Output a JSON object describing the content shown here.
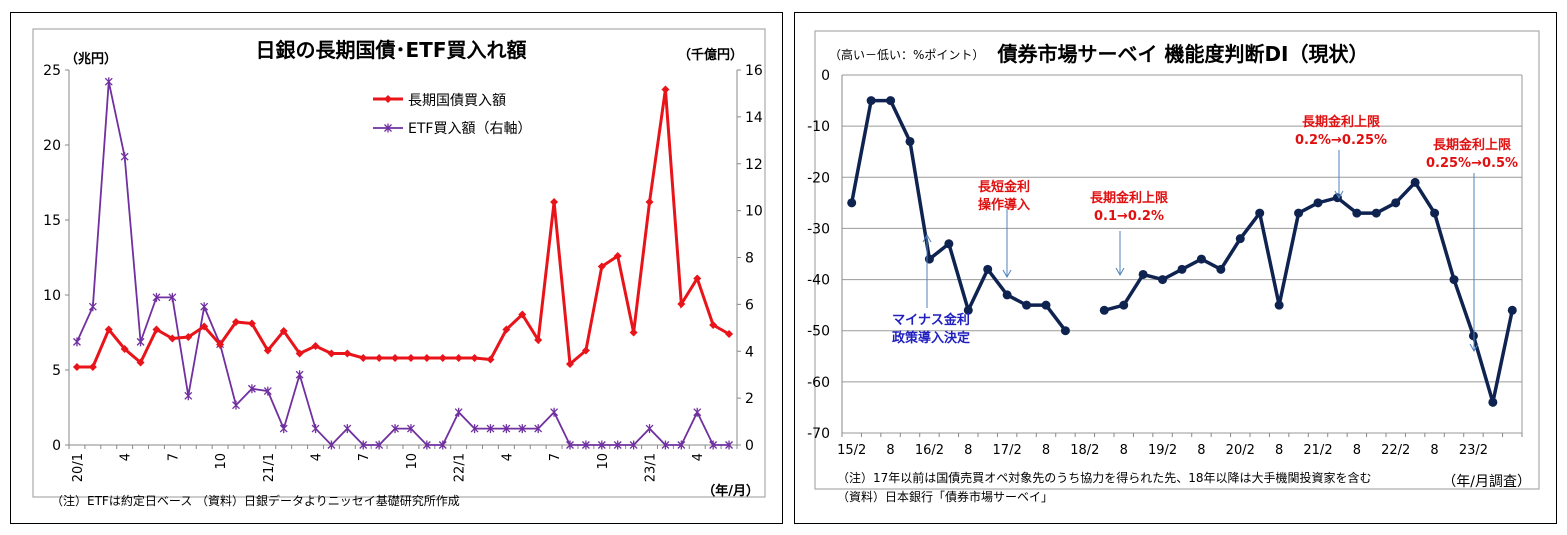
{
  "chart_data": [
    {
      "type": "line",
      "title": "日銀の長期国債･ETF買入れ額",
      "ylabel": "（兆円）",
      "ylabel_right": "（千億円）",
      "xlabel": "（年/月）",
      "note": "（注）ETFは約定日ベース （資料）日銀データよりニッセイ基礎研究所作成",
      "ylim": [
        0,
        25
      ],
      "yticks": [
        "0",
        "5",
        "10",
        "15",
        "20",
        "25"
      ],
      "ylim_right": [
        0,
        16
      ],
      "yticks_right": [
        "0",
        "2",
        "4",
        "6",
        "8",
        "10",
        "12",
        "14",
        "16"
      ],
      "x_tick_labels": [
        {
          "i": 0,
          "label": "20/1"
        },
        {
          "i": 3,
          "label": "4"
        },
        {
          "i": 6,
          "label": "7"
        },
        {
          "i": 9,
          "label": "10"
        },
        {
          "i": 12,
          "label": "21/1"
        },
        {
          "i": 15,
          "label": "4"
        },
        {
          "i": 18,
          "label": "7"
        },
        {
          "i": 21,
          "label": "10"
        },
        {
          "i": 24,
          "label": "22/1"
        },
        {
          "i": 27,
          "label": "4"
        },
        {
          "i": 30,
          "label": "7"
        },
        {
          "i": 33,
          "label": "10"
        },
        {
          "i": 36,
          "label": "23/1"
        },
        {
          "i": 39,
          "label": "4"
        }
      ],
      "legend": "top-center",
      "series": [
        {
          "name": "長期国債買入額",
          "axis": "left",
          "color": "#e8141a",
          "marker": "diamond",
          "values": [
            5.2,
            5.2,
            7.7,
            6.4,
            5.5,
            7.7,
            7.1,
            7.2,
            7.9,
            6.7,
            8.2,
            8.1,
            6.3,
            7.6,
            6.1,
            6.6,
            6.1,
            6.1,
            5.8,
            5.8,
            5.8,
            5.8,
            5.8,
            5.8,
            5.8,
            5.8,
            5.7,
            7.7,
            8.7,
            7.0,
            16.2,
            5.4,
            6.3,
            11.9,
            12.6,
            7.5,
            16.2,
            23.7,
            9.4,
            11.1,
            8.0,
            7.4
          ]
        },
        {
          "name": "ETF買入額（右軸）",
          "axis": "right",
          "color": "#7030a0",
          "marker": "asterisk",
          "values": [
            4.4,
            5.9,
            15.5,
            12.3,
            4.4,
            6.3,
            6.3,
            2.1,
            5.9,
            4.3,
            1.7,
            2.4,
            2.3,
            0.7,
            3.0,
            0.7,
            0.0,
            0.7,
            0.0,
            0.0,
            0.7,
            0.7,
            0.0,
            0.0,
            1.4,
            0.7,
            0.7,
            0.7,
            0.7,
            0.7,
            1.4,
            0.0,
            0.0,
            0.0,
            0.0,
            0.0,
            0.7,
            0.0,
            0.0,
            1.4,
            0.0,
            0.0
          ]
        }
      ]
    },
    {
      "type": "line",
      "title": "債券市場サーベイ 機能度判断DI（現状）",
      "ylabel": "（高い－低い：%ポイント）",
      "xlabel": "（年/月調査）",
      "note1": "（注）17年以前は国債売買オペ対象先のうち協力を得られた先、18年以降は大手機関投資家を含む",
      "note2": "（資料）日本銀行「債券市場サーベイ」",
      "ylim": [
        -70,
        0
      ],
      "yticks": [
        "0",
        "-10",
        "-20",
        "-30",
        "-40",
        "-50",
        "-60",
        "-70"
      ],
      "x_tick_labels": [
        "15/2",
        "8",
        "16/2",
        "8",
        "17/2",
        "8",
        "18/2",
        "8",
        "19/2",
        "8",
        "20/2",
        "8",
        "21/2",
        "8",
        "22/2",
        "8",
        "23/2"
      ],
      "series": [
        {
          "name": "",
          "color": "#0f2351",
          "marker": "circle",
          "values": [
            -25,
            -5,
            -5,
            -13,
            -36,
            -33,
            -46,
            -38,
            -43,
            -45,
            -45,
            -50,
            null,
            -46,
            -45,
            -39,
            -40,
            -38,
            -36,
            -38,
            -32,
            -27,
            -45,
            -27,
            -25,
            -24,
            -27,
            -27,
            -25,
            -21,
            -27,
            -40,
            -51,
            -64,
            -46
          ]
        }
      ],
      "annotations": [
        {
          "lines": [
            "マイナス金利",
            "政策導入決定"
          ],
          "color": "#2020c0"
        },
        {
          "lines": [
            "長短金利",
            "操作導入"
          ],
          "color": "#e01010"
        },
        {
          "lines": [
            "長期金利上限",
            "0.1→0.2%"
          ],
          "color": "#e01010"
        },
        {
          "lines": [
            "長期金利上限",
            "0.2%→0.25%"
          ],
          "color": "#e01010"
        },
        {
          "lines": [
            "長期金利上限",
            "0.25%→0.5%"
          ],
          "color": "#e01010"
        }
      ]
    }
  ]
}
